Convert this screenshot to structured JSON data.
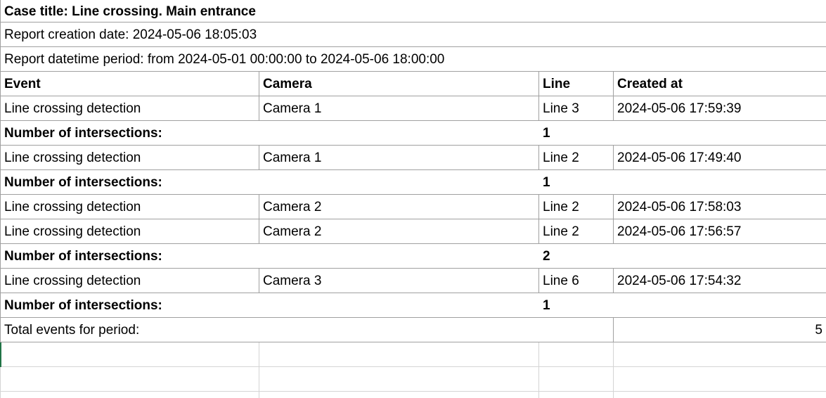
{
  "report": {
    "case_title": "Case title: Line crossing. Main entrance",
    "creation_date": "Report creation date: 2024-05-06 18:05:03",
    "period": "Report datetime period: from 2024-05-01 00:00:00 to 2024-05-06 18:00:00"
  },
  "table": {
    "headers": {
      "event": "Event",
      "camera": "Camera",
      "line": "Line",
      "created_at": "Created at"
    },
    "rows": [
      {
        "type": "data",
        "event": "Line crossing detection",
        "camera": "Camera 1",
        "line": "Line 3",
        "created_at": "2024-05-06 17:59:39"
      },
      {
        "type": "summary",
        "label": "Number of intersections:",
        "value": "1"
      },
      {
        "type": "data",
        "event": "Line crossing detection",
        "camera": "Camera 1",
        "line": "Line 2",
        "created_at": "2024-05-06 17:49:40"
      },
      {
        "type": "summary",
        "label": "Number of intersections:",
        "value": "1"
      },
      {
        "type": "data",
        "event": "Line crossing detection",
        "camera": "Camera 2",
        "line": "Line 2",
        "created_at": "2024-05-06 17:58:03"
      },
      {
        "type": "data",
        "event": "Line crossing detection",
        "camera": "Camera 2",
        "line": "Line 2",
        "created_at": "2024-05-06 17:56:57"
      },
      {
        "type": "summary",
        "label": "Number of intersections:",
        "value": "2"
      },
      {
        "type": "data",
        "event": "Line crossing detection",
        "camera": "Camera 3",
        "line": "Line 6",
        "created_at": "2024-05-06 17:54:32"
      },
      {
        "type": "summary",
        "label": "Number of intersections:",
        "value": "1"
      }
    ],
    "total": {
      "label": "Total events for period:",
      "value": "5"
    }
  },
  "colors": {
    "background": "#ffffff",
    "text": "#000000",
    "table_border": "#a0a0a0",
    "gridline": "#d4d4d4",
    "selection_green": "#217346"
  }
}
